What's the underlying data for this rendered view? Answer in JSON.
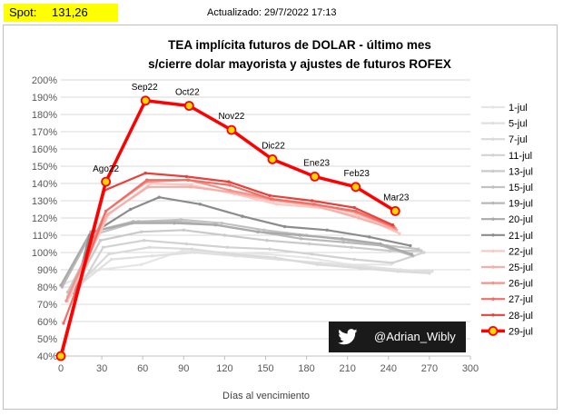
{
  "header": {
    "spot_label": "Spot:",
    "spot_value": "131,26",
    "updated": "Actualizado: 29/7/2022 17:13"
  },
  "badge": {
    "icon": "twitter-bird-icon",
    "handle": "@Adrian_Wibly"
  },
  "chart_data": {
    "type": "line",
    "title": "TEA implícita futuros de DOLAR - último mes",
    "subtitle": "s/cierre dolar mayorista y ajustes de futuros ROFEX",
    "xlabel": "Días al vencimiento",
    "ylabel": "",
    "xlim": [
      0,
      300
    ],
    "ylim": [
      40,
      200
    ],
    "xticks": [
      0,
      30,
      60,
      90,
      120,
      150,
      180,
      210,
      240,
      270,
      300
    ],
    "yticks": [
      40,
      50,
      60,
      70,
      80,
      90,
      100,
      110,
      120,
      130,
      140,
      150,
      160,
      170,
      180,
      190,
      200
    ],
    "ytick_suffix": "%",
    "grid": true,
    "legend_position": "right",
    "point_labels": [
      "Ago22",
      "Sep22",
      "Oct22",
      "Nov22",
      "Dic22",
      "Ene23",
      "Feb23",
      "Mar23"
    ],
    "series": [
      {
        "name": "1-jul",
        "color": "#e6e6e6",
        "x": [
          3,
          28,
          59,
          89,
          120,
          151,
          181,
          212,
          242
        ],
        "y": [
          82,
          90,
          93,
          101,
          100,
          99,
          97,
          93,
          93
        ]
      },
      {
        "name": "5-jul",
        "color": "#e0e0e0",
        "x": [
          7,
          37,
          67,
          98,
          128,
          159,
          190,
          221,
          249,
          272
        ],
        "y": [
          77,
          96,
          98,
          100,
          98,
          96,
          94,
          92,
          90,
          89
        ]
      },
      {
        "name": "7-jul",
        "color": "#dadada",
        "x": [
          5,
          35,
          65,
          96,
          126,
          157,
          188,
          219,
          247,
          270
        ],
        "y": [
          75,
          99,
          103,
          102,
          99,
          97,
          93,
          91,
          89,
          88
        ]
      },
      {
        "name": "11-jul",
        "color": "#d2d2d2",
        "x": [
          9,
          31,
          61,
          92,
          122,
          153,
          184,
          215,
          243,
          266
        ],
        "y": [
          73,
          103,
          107,
          105,
          103,
          102,
          99,
          96,
          94,
          100
        ]
      },
      {
        "name": "13-jul",
        "color": "#cacaca",
        "x": [
          7,
          29,
          59,
          90,
          120,
          151,
          182,
          213,
          241,
          264
        ],
        "y": [
          75,
          107,
          112,
          113,
          110,
          107,
          105,
          103,
          101,
          101
        ]
      },
      {
        "name": "15-jul",
        "color": "#c2c2c2",
        "x": [
          5,
          27,
          57,
          88,
          118,
          149,
          180,
          211,
          239,
          262
        ],
        "y": [
          77,
          111,
          118,
          119,
          117,
          113,
          110,
          107,
          104,
          102
        ]
      },
      {
        "name": "19-jul",
        "color": "#b8b8b8",
        "x": [
          1,
          23,
          53,
          84,
          114,
          145,
          176,
          207,
          235,
          258
        ],
        "y": [
          80,
          112,
          118,
          118,
          116,
          112,
          108,
          106,
          104,
          98
        ]
      },
      {
        "name": "20-jul",
        "color": "#aaaaaa",
        "x": [
          0,
          22,
          52,
          83,
          113,
          144,
          175,
          206,
          234,
          257
        ],
        "y": [
          81,
          112,
          117,
          117,
          116,
          112,
          110,
          108,
          105,
          99
        ]
      },
      {
        "name": "21-jul",
        "color": "#8c8c8c",
        "x": [
          10,
          21,
          51,
          72,
          102,
          133,
          164,
          195,
          226,
          256
        ],
        "y": [
          76,
          110,
          125,
          132,
          128,
          121,
          115,
          113,
          109,
          104
        ]
      },
      {
        "name": "22-jul",
        "color": "#fbc9c4",
        "x": [
          5,
          35,
          66,
          96,
          127,
          158,
          189,
          220,
          248
        ],
        "y": [
          72,
          122,
          140,
          139,
          134,
          128,
          126,
          121,
          111
        ]
      },
      {
        "name": "25-jul",
        "color": "#f8aea8",
        "x": [
          5,
          34,
          64,
          95,
          125,
          156,
          187,
          218,
          246
        ],
        "y": [
          74,
          122,
          138,
          138,
          135,
          130,
          127,
          120,
          113
        ]
      },
      {
        "name": "26-jul",
        "color": "#f4938b",
        "x": [
          4,
          33,
          63,
          94,
          124,
          155,
          186,
          217,
          245
        ],
        "y": [
          72,
          124,
          141,
          142,
          136,
          131,
          128,
          123,
          114
        ]
      },
      {
        "name": "27-jul",
        "color": "#ef6f66",
        "x": [
          2,
          33,
          63,
          93,
          124,
          154,
          185,
          216,
          244
        ],
        "y": [
          59,
          124,
          142,
          142,
          139,
          131,
          128,
          124,
          115
        ]
      },
      {
        "name": "28-jul",
        "color": "#e8403a",
        "x": [
          1,
          32,
          62,
          92,
          123,
          153,
          184,
          215,
          243
        ],
        "y": [
          41,
          136,
          146,
          144,
          141,
          133,
          130,
          126,
          116
        ]
      },
      {
        "name": "29-jul",
        "color": "#ff0000",
        "marker": "#ffd700",
        "x": [
          0,
          33,
          62,
          94,
          125,
          155,
          186,
          216,
          245
        ],
        "y": [
          40,
          141,
          188,
          185,
          171,
          154,
          144,
          138,
          124
        ]
      }
    ]
  }
}
